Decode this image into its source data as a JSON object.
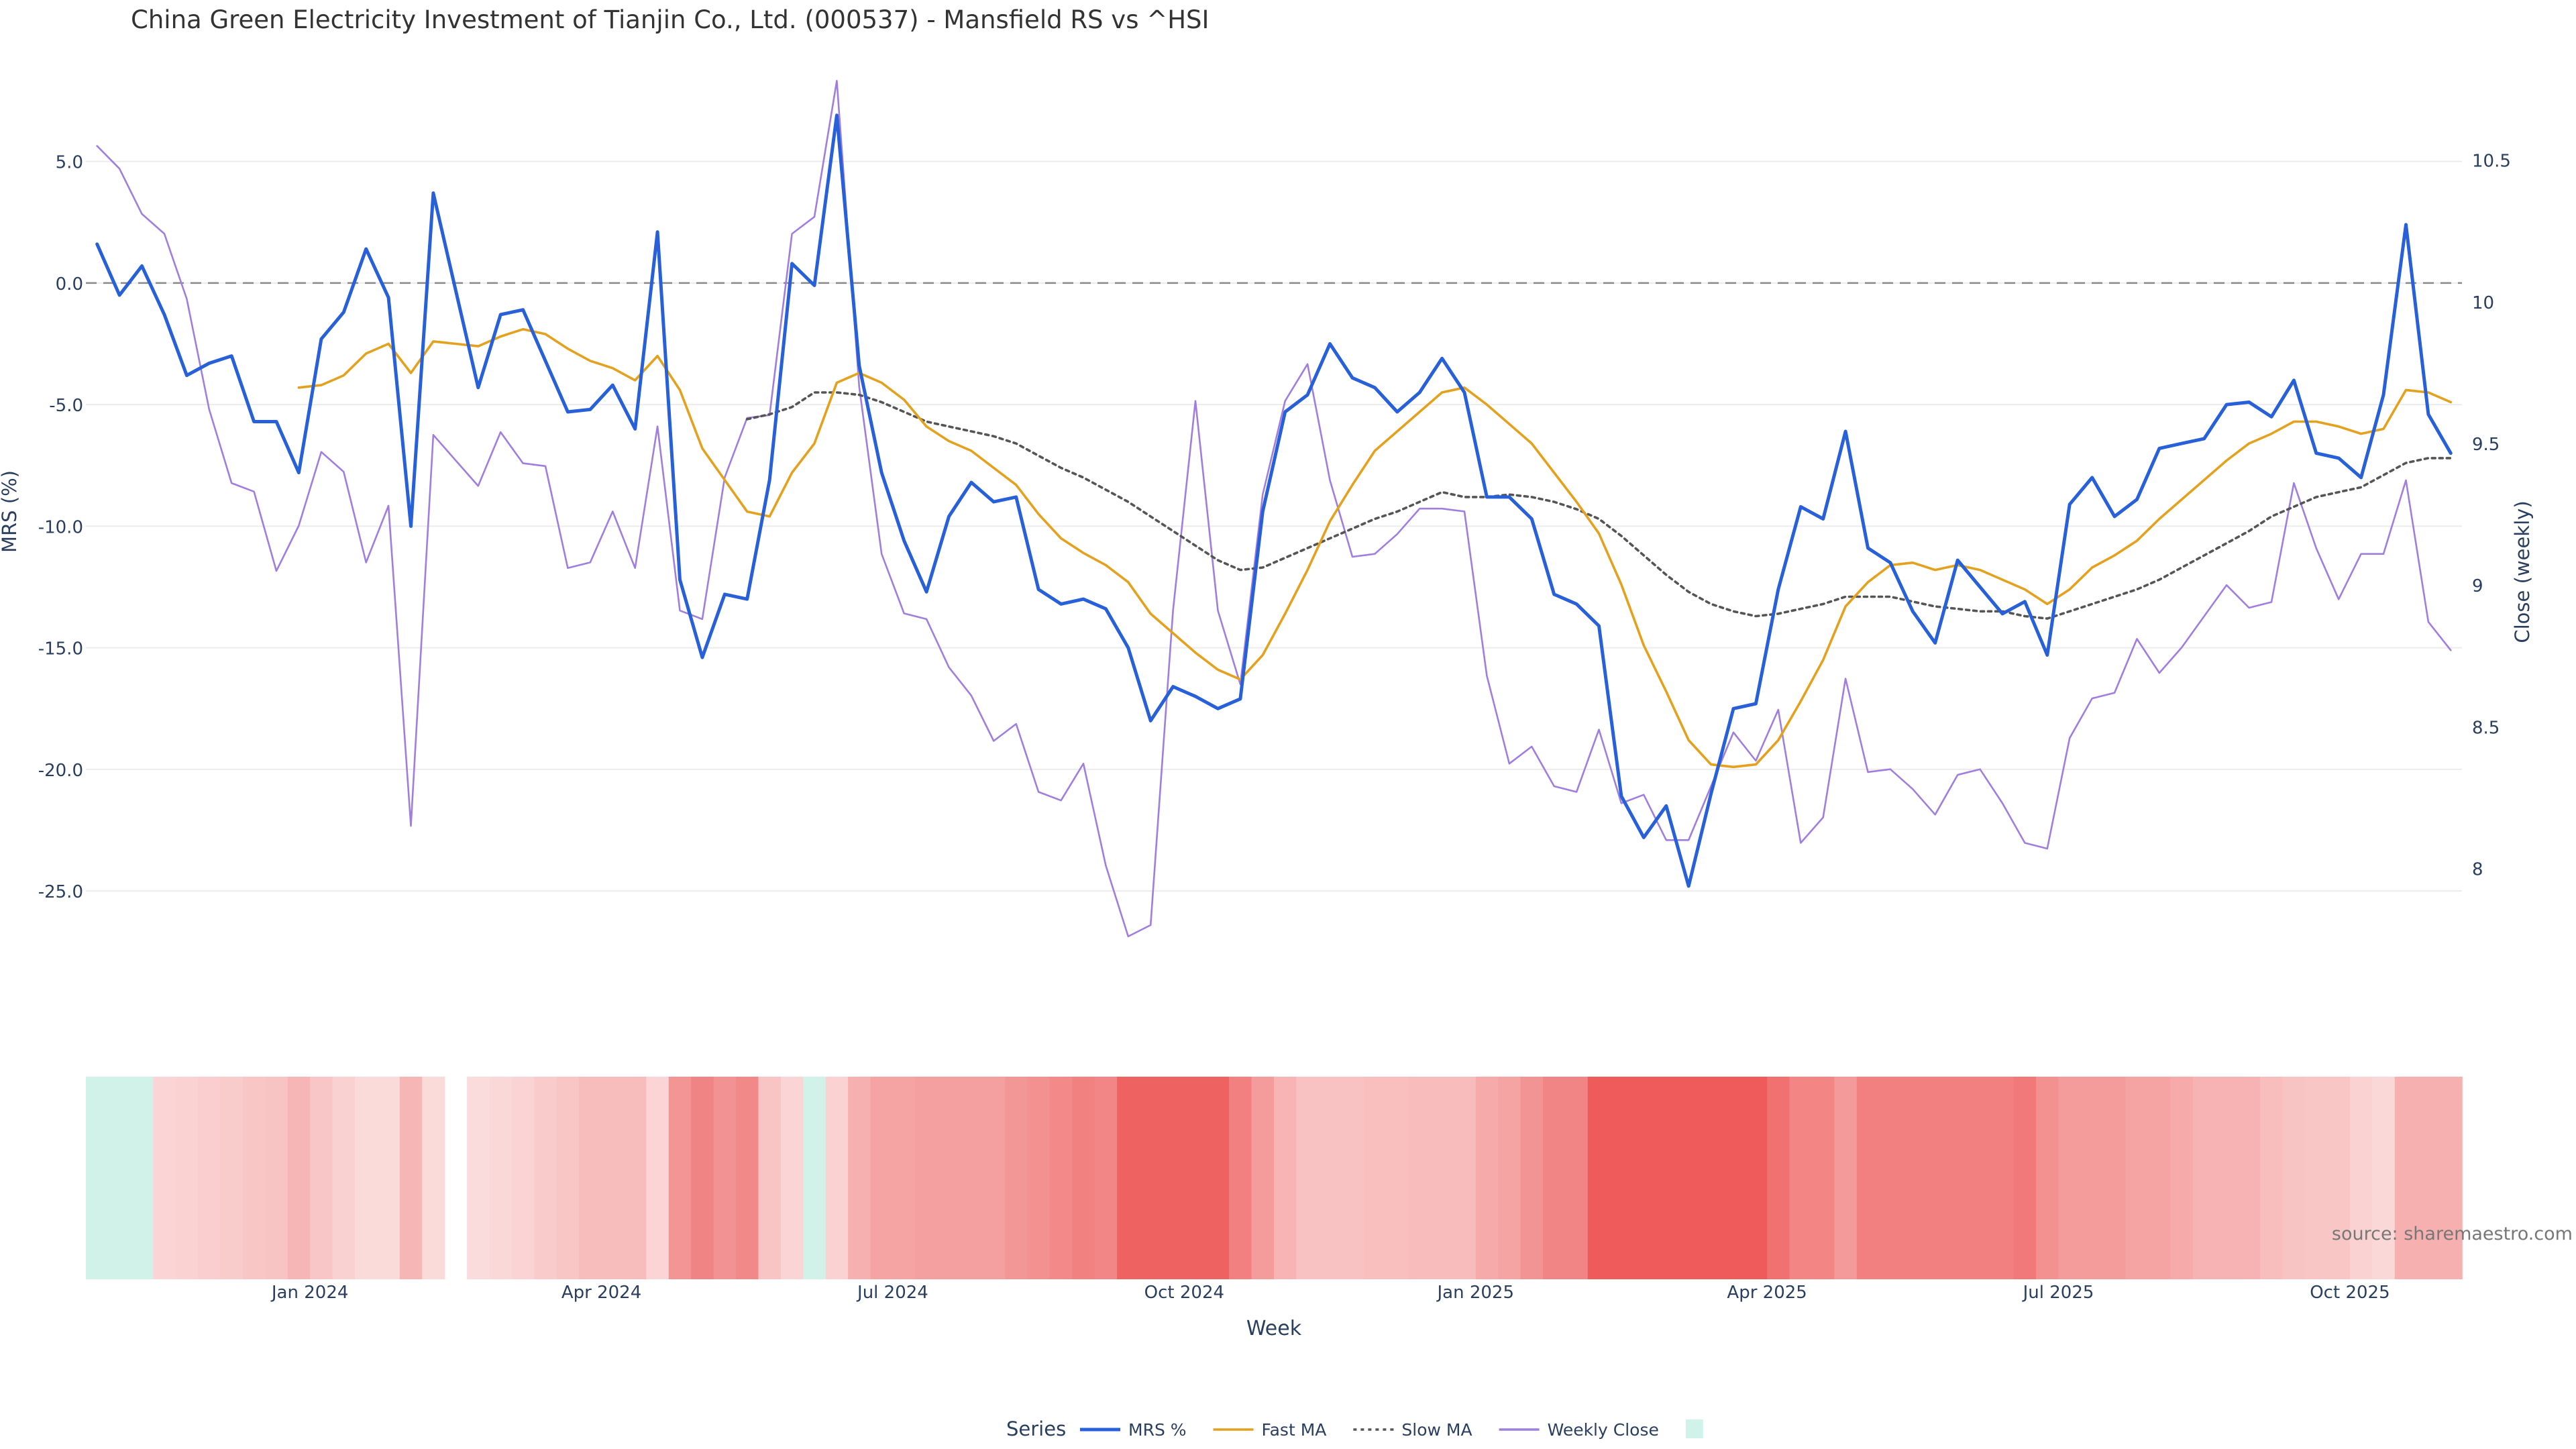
{
  "chart_data": {
    "type": "line",
    "title": "China Green Electricity Investment of Tianjin Co., Ltd. (000537) - Mansfield RS vs ^HSI",
    "source": "source: sharemaestro.com",
    "xlabel": "Week",
    "ylabel_left": "MRS (%)",
    "ylabel_right": "Close (weekly)",
    "x_tick_labels": [
      "Jan 2024",
      "Apr 2024",
      "Jul 2024",
      "Oct 2024",
      "Jan 2025",
      "Apr 2025",
      "Jul 2025",
      "Oct 2025"
    ],
    "y_left_ticks": [
      "5.0",
      "0.0",
      "-5.0",
      "-10.0",
      "-15.0",
      "-20.0",
      "-25.0"
    ],
    "y_left_range": [
      -28.5,
      7.5
    ],
    "y_right_ticks": [
      "10.5",
      "10",
      "9.5",
      "9",
      "8.5",
      "8"
    ],
    "y_right_range": [
      7.62,
      10.71
    ],
    "reference_line": 0,
    "legend_title": "Series",
    "legend_placement": "bottom-center",
    "grid": true,
    "n_weeks": 106,
    "series": [
      {
        "name": "MRS %",
        "color": "#2760d8",
        "axis": "left",
        "style": "solid",
        "values": [
          1.6,
          -0.5,
          0.7,
          -1.3,
          -3.8,
          -3.3,
          -3.0,
          -5.7,
          -5.7,
          -7.8,
          -2.3,
          -1.2,
          1.4,
          -0.6,
          -10.0,
          3.7,
          -0.3,
          -4.3,
          -1.3,
          -1.1,
          -3.2,
          -5.3,
          -5.2,
          -4.2,
          -6.0,
          2.1,
          -12.2,
          -15.4,
          -12.8,
          -13.0,
          -8.1,
          0.8,
          -0.1,
          6.9,
          -3.4,
          -7.8,
          -10.6,
          -12.7,
          -9.6,
          -8.2,
          -9.0,
          -8.8,
          -12.6,
          -13.2,
          -13.0,
          -13.4,
          -15.0,
          -18.0,
          -16.6,
          -17.0,
          -17.5,
          -17.1,
          -9.4,
          -5.3,
          -4.6,
          -2.5,
          -3.9,
          -4.3,
          -5.3,
          -4.5,
          -3.1,
          -4.5,
          -8.8,
          -8.8,
          -9.7,
          -12.8,
          -13.2,
          -14.1,
          -21.1,
          -22.8,
          -21.5,
          -24.8,
          -21.0,
          -17.5,
          -17.3,
          -12.6,
          -9.2,
          -9.7,
          -6.1,
          -10.9,
          -11.5,
          -13.5,
          -14.8,
          -11.4,
          -12.5,
          -13.6,
          -13.1,
          -15.3,
          -9.1,
          -8.0,
          -9.6,
          -8.9,
          -6.8,
          -6.6,
          -6.4,
          -5.0,
          -4.9,
          -5.5,
          -4.0,
          -7.0,
          -7.2,
          -8.0,
          -4.6,
          2.4,
          -5.4,
          -7.0
        ]
      },
      {
        "name": "Fast MA",
        "color": "#e3a11d",
        "axis": "left",
        "style": "solid",
        "values": [
          null,
          null,
          null,
          null,
          null,
          null,
          null,
          null,
          null,
          -4.3,
          -4.2,
          -3.8,
          -2.9,
          -2.5,
          -3.7,
          -2.4,
          -2.5,
          -2.6,
          -2.2,
          -1.9,
          -2.1,
          -2.7,
          -3.2,
          -3.5,
          -4.0,
          -3.0,
          -4.4,
          -6.8,
          -8.1,
          -9.4,
          -9.6,
          -7.8,
          -6.6,
          -4.1,
          -3.7,
          -4.1,
          -4.8,
          -5.9,
          -6.5,
          -6.9,
          -7.6,
          -8.3,
          -9.5,
          -10.5,
          -11.1,
          -11.6,
          -12.3,
          -13.6,
          -14.4,
          -15.2,
          -15.9,
          -16.3,
          -15.3,
          -13.6,
          -11.8,
          -9.8,
          -8.3,
          -6.9,
          -6.1,
          -5.3,
          -4.5,
          -4.3,
          -5.0,
          -5.8,
          -6.6,
          -7.8,
          -9.0,
          -10.3,
          -12.4,
          -14.9,
          -16.8,
          -18.8,
          -19.8,
          -19.9,
          -19.8,
          -18.8,
          -17.2,
          -15.5,
          -13.3,
          -12.3,
          -11.6,
          -11.5,
          -11.8,
          -11.6,
          -11.8,
          -12.2,
          -12.6,
          -13.2,
          -12.6,
          -11.7,
          -11.2,
          -10.6,
          -9.7,
          -8.9,
          -8.1,
          -7.3,
          -6.6,
          -6.2,
          -5.7,
          -5.7,
          -5.9,
          -6.2,
          -6.0,
          -4.4,
          -4.5,
          -4.9
        ]
      },
      {
        "name": "Slow MA",
        "color": "#555555",
        "axis": "left",
        "style": "dotted",
        "values": [
          null,
          null,
          null,
          null,
          null,
          null,
          null,
          null,
          null,
          null,
          null,
          null,
          null,
          null,
          null,
          null,
          null,
          null,
          null,
          null,
          null,
          null,
          null,
          null,
          null,
          null,
          null,
          null,
          null,
          -5.6,
          -5.4,
          -5.1,
          -4.5,
          -4.5,
          -4.6,
          -4.9,
          -5.3,
          -5.7,
          -5.9,
          -6.1,
          -6.3,
          -6.6,
          -7.1,
          -7.6,
          -8.0,
          -8.5,
          -9.0,
          -9.6,
          -10.2,
          -10.8,
          -11.4,
          -11.8,
          -11.7,
          -11.3,
          -10.9,
          -10.5,
          -10.1,
          -9.7,
          -9.4,
          -9.0,
          -8.6,
          -8.8,
          -8.8,
          -8.7,
          -8.8,
          -9.0,
          -9.3,
          -9.7,
          -10.4,
          -11.2,
          -12.0,
          -12.7,
          -13.2,
          -13.5,
          -13.7,
          -13.6,
          -13.4,
          -13.2,
          -12.9,
          -12.9,
          -12.9,
          -13.1,
          -13.3,
          -13.4,
          -13.5,
          -13.5,
          -13.7,
          -13.8,
          -13.5,
          -13.2,
          -12.9,
          -12.6,
          -12.2,
          -11.7,
          -11.2,
          -10.7,
          -10.2,
          -9.6,
          -9.2,
          -8.8,
          -8.6,
          -8.4,
          -7.9,
          -7.4,
          -7.2,
          -7.2
        ]
      },
      {
        "name": "Weekly Close",
        "color": "#a07ee0",
        "axis": "right",
        "style": "solid",
        "values": [
          10.55,
          10.47,
          10.31,
          10.24,
          10.01,
          9.62,
          9.36,
          9.33,
          9.05,
          9.21,
          9.47,
          9.4,
          9.08,
          9.28,
          8.15,
          9.53,
          9.44,
          9.35,
          9.54,
          9.43,
          9.42,
          9.06,
          9.08,
          9.26,
          9.06,
          9.56,
          8.91,
          8.88,
          9.38,
          9.59,
          9.6,
          10.24,
          10.3,
          10.78,
          9.7,
          9.11,
          8.9,
          8.88,
          8.71,
          8.61,
          8.45,
          8.51,
          8.27,
          8.24,
          8.37,
          8.01,
          7.76,
          7.8,
          8.91,
          9.65,
          8.91,
          8.65,
          9.32,
          9.65,
          9.78,
          9.37,
          9.1,
          9.11,
          9.18,
          9.27,
          9.27,
          9.26,
          8.68,
          8.37,
          8.43,
          8.29,
          8.27,
          8.49,
          8.23,
          8.26,
          8.1,
          8.1,
          8.29,
          8.48,
          8.38,
          8.56,
          8.09,
          8.18,
          8.67,
          8.34,
          8.35,
          8.28,
          8.19,
          8.33,
          8.35,
          8.23,
          8.09,
          8.07,
          8.46,
          8.6,
          8.62,
          8.81,
          8.69,
          8.78,
          8.89,
          9.0,
          8.92,
          8.94,
          9.36,
          9.13,
          8.95,
          9.11,
          9.11,
          9.37,
          8.87,
          8.77
        ]
      }
    ],
    "heatmap_band": {
      "colors": [
        "#d1f2e8",
        "#d1f2e8",
        "#d1f2e8",
        "#fbd5d5",
        "#fbd2d2",
        "#facece",
        "#f9cccc",
        "#f9c6c6",
        "#f8c3c3",
        "#f7b6b6",
        "#f8c6c6",
        "#f9d1d1",
        "#fbdada",
        "#fbdada",
        "#f7b6b6",
        "#fbdada",
        null,
        "#fbdcdc",
        "#fad8d8",
        "#fad4d4",
        "#f9cbcb",
        "#f9c6c6",
        "#f7bdbd",
        "#f7bdbd",
        "#f7bdbd",
        "#fbd5d5",
        "#f39595",
        "#f08484",
        "#f39292",
        "#f18989",
        "#f9c4c4",
        "#fbd5d5",
        "#d1f2e8",
        "#fad2d2",
        "#f6b0b0",
        "#f5a3a3",
        "#f5a3a3",
        "#f4a0a0",
        "#f4a0a0",
        "#f4a0a0",
        "#f4a0a0",
        "#f39696",
        "#f39090",
        "#f38989",
        "#f18181",
        "#f28686",
        "#ef6262",
        "#ef6262",
        "#ef6262",
        "#ef6262",
        "#ef6262",
        "#f28080",
        "#f49c9c",
        "#f8b4b4",
        "#f9c2c2",
        "#f9c2c2",
        "#f9c2c2",
        "#f9bfbf",
        "#f9bfbf",
        "#f8bcbc",
        "#f8bcbc",
        "#f8bcbc",
        "#f6aaaa",
        "#f5a3a3",
        "#f39494",
        "#f18484",
        "#f18484",
        "#ef5a5a",
        "#ef5a5a",
        "#ef5a5a",
        "#ef5a5a",
        "#ef5a5a",
        "#ef5a5a",
        "#ef5a5a",
        "#ef5a5a",
        "#f17070",
        "#f38585",
        "#f38585",
        "#f59a9a",
        "#f28080",
        "#f28080",
        "#f28080",
        "#f28080",
        "#f28080",
        "#f28080",
        "#f28080",
        "#f17979",
        "#f39090",
        "#f49c9c",
        "#f49c9c",
        "#f49c9c",
        "#f5a3a3",
        "#f5a3a3",
        "#f6aaaa",
        "#f7b3b3",
        "#f7b3b3",
        "#f7b3b3",
        "#f8bdbd",
        "#f8c3c3",
        "#f9c6c6",
        "#f9c6c6",
        "#fad2d2",
        "#fad8d8",
        "#f6b0b0",
        "#f6b0b0",
        "#f6b0b0"
      ]
    }
  }
}
